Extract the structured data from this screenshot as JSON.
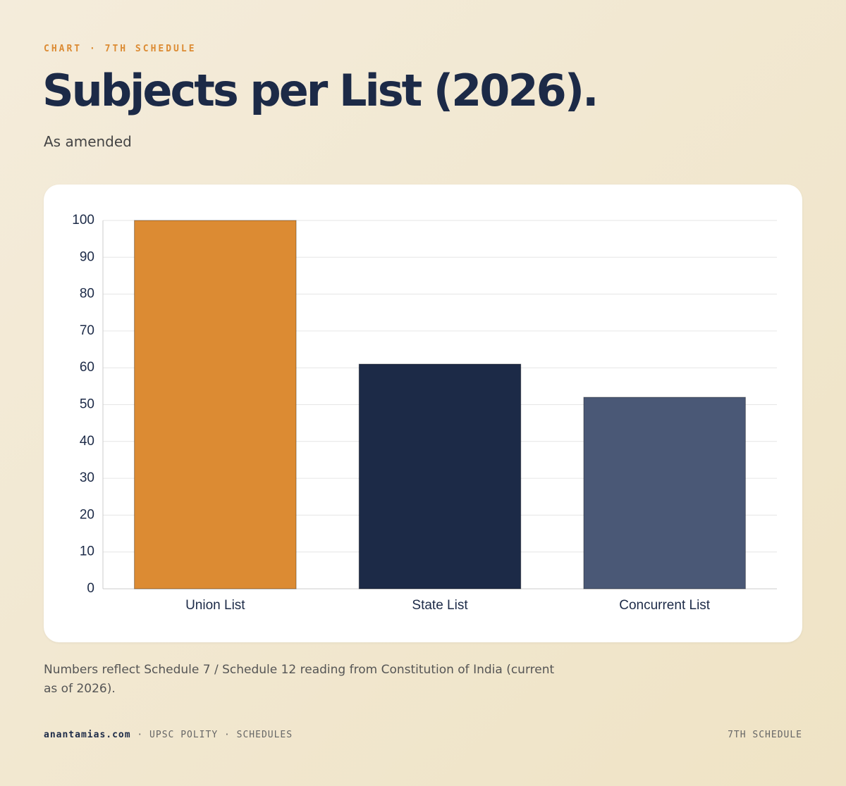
{
  "eyebrow": "CHART · 7TH SCHEDULE",
  "chart_data": {
    "type": "bar",
    "title": "Subjects per List (2026).",
    "subtitle": "As amended",
    "categories": [
      "Union List",
      "State List",
      "Concurrent List"
    ],
    "values": [
      100,
      61,
      52
    ],
    "colors": [
      "#dc8b33",
      "#1c2a47",
      "#4a5876"
    ],
    "ylim": [
      0,
      100
    ],
    "yticks": [
      0,
      10,
      20,
      30,
      40,
      50,
      60,
      70,
      80,
      90,
      100
    ],
    "grid": true
  },
  "note": "Numbers reflect Schedule 7 / Schedule 12 reading from Constitution of India (current as of 2026).",
  "footer": {
    "brand": "anantamias.com",
    "section": "· UPSC POLITY · SCHEDULES",
    "right": "7TH SCHEDULE"
  }
}
